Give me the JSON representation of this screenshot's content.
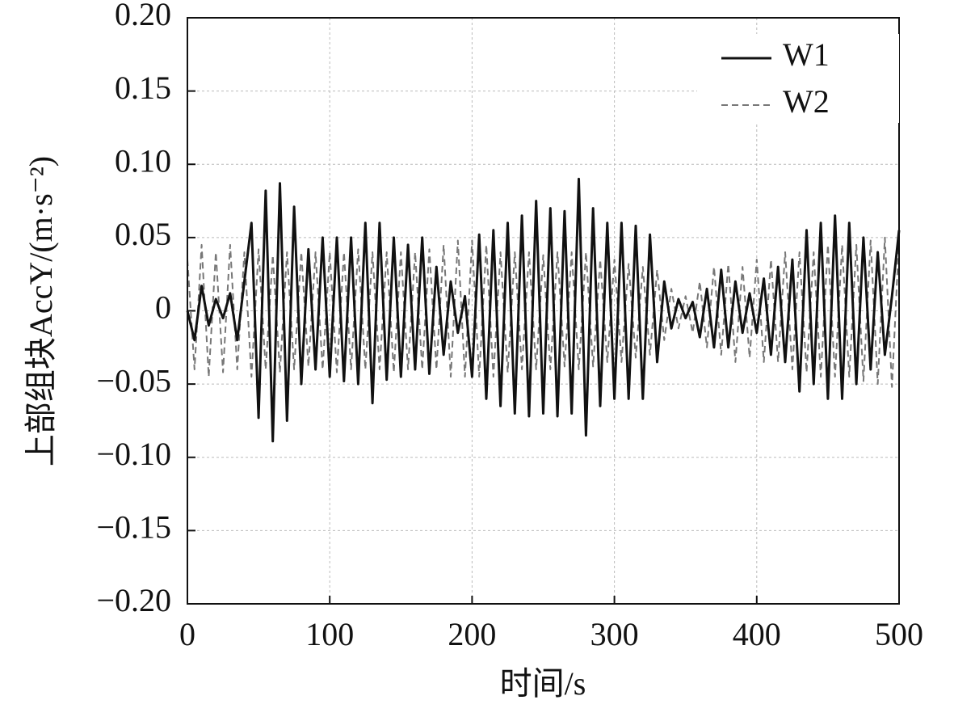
{
  "chart_data": {
    "type": "line",
    "xlabel": "时间/s",
    "ylabel": "上部组块AccY/(m·s⁻²)",
    "x": [
      0,
      5,
      10,
      15,
      20,
      25,
      30,
      35,
      40,
      45,
      50,
      55,
      60,
      65,
      70,
      75,
      80,
      85,
      90,
      95,
      100,
      105,
      110,
      115,
      120,
      125,
      130,
      135,
      140,
      145,
      150,
      155,
      160,
      165,
      170,
      175,
      180,
      185,
      190,
      195,
      200,
      205,
      210,
      215,
      220,
      225,
      230,
      235,
      240,
      245,
      250,
      255,
      260,
      265,
      270,
      275,
      280,
      285,
      290,
      295,
      300,
      305,
      310,
      315,
      320,
      325,
      330,
      335,
      340,
      345,
      350,
      355,
      360,
      365,
      370,
      375,
      380,
      385,
      390,
      395,
      400,
      405,
      410,
      415,
      420,
      425,
      430,
      435,
      440,
      445,
      450,
      455,
      460,
      465,
      470,
      475,
      480,
      485,
      490,
      495,
      500
    ],
    "series": [
      {
        "name": "W1",
        "color": "#111111",
        "dash": false,
        "values": [
          0,
          -0.02,
          0.017,
          -0.01,
          0.008,
          -0.005,
          0.012,
          -0.02,
          0.02,
          0.06,
          -0.073,
          0.082,
          -0.089,
          0.087,
          -0.075,
          0.071,
          -0.05,
          0.042,
          -0.04,
          0.05,
          -0.045,
          0.05,
          -0.048,
          0.05,
          -0.05,
          0.06,
          -0.063,
          0.06,
          -0.047,
          0.05,
          -0.045,
          0.045,
          -0.04,
          0.05,
          -0.043,
          0.03,
          -0.03,
          0.02,
          -0.015,
          0.01,
          -0.045,
          0.052,
          -0.06,
          0.055,
          -0.065,
          0.06,
          -0.07,
          0.065,
          -0.072,
          0.075,
          -0.07,
          0.07,
          -0.072,
          0.068,
          -0.07,
          0.09,
          -0.085,
          0.07,
          -0.065,
          0.06,
          -0.06,
          0.06,
          -0.06,
          0.058,
          -0.06,
          0.052,
          -0.035,
          0.02,
          -0.012,
          0.008,
          -0.005,
          0.006,
          -0.018,
          0.015,
          -0.025,
          0.028,
          -0.025,
          0.02,
          -0.015,
          0.012,
          -0.015,
          0.022,
          -0.03,
          0.03,
          -0.035,
          0.035,
          -0.055,
          0.055,
          -0.05,
          0.06,
          -0.06,
          0.065,
          -0.06,
          0.06,
          -0.05,
          0.05,
          -0.04,
          0.04,
          -0.03,
          0.01,
          0.055
        ]
      },
      {
        "name": "W2",
        "color": "#777777",
        "dash": true,
        "values": [
          0.035,
          -0.04,
          0.045,
          -0.045,
          0.04,
          -0.042,
          0.045,
          -0.04,
          0.04,
          -0.045,
          0.042,
          -0.04,
          0.038,
          -0.042,
          0.04,
          -0.04,
          0.04,
          -0.038,
          0.04,
          -0.04,
          0.04,
          -0.042,
          0.04,
          -0.04,
          0.042,
          -0.04,
          0.04,
          -0.04,
          0.04,
          -0.042,
          0.04,
          -0.04,
          0.04,
          -0.04,
          0.042,
          -0.04,
          0.045,
          -0.045,
          0.048,
          -0.045,
          0.048,
          -0.045,
          0.045,
          -0.045,
          0.04,
          -0.042,
          0.04,
          -0.04,
          0.04,
          -0.04,
          0.038,
          -0.04,
          0.04,
          -0.038,
          0.04,
          -0.04,
          0.04,
          -0.038,
          0.035,
          -0.035,
          0.035,
          -0.035,
          0.032,
          -0.032,
          0.03,
          -0.03,
          0.028,
          -0.02,
          0.015,
          -0.012,
          0.01,
          -0.015,
          0.02,
          -0.025,
          0.03,
          -0.03,
          0.032,
          -0.035,
          0.03,
          -0.032,
          0.035,
          -0.035,
          0.035,
          -0.035,
          0.04,
          -0.04,
          0.04,
          -0.042,
          0.04,
          -0.045,
          0.045,
          -0.045,
          0.045,
          -0.045,
          0.045,
          -0.048,
          0.048,
          -0.05,
          0.05,
          -0.052,
          0.05
        ]
      }
    ],
    "xlim": [
      0,
      500
    ],
    "xticks": [
      0,
      100,
      200,
      300,
      400,
      500
    ],
    "ylim": [
      -0.2,
      0.2
    ],
    "yticks": [
      {
        "value": -0.2,
        "label": "−0.20"
      },
      {
        "value": -0.15,
        "label": "−0.15"
      },
      {
        "value": -0.1,
        "label": "−0.10"
      },
      {
        "value": -0.05,
        "label": "−0.05"
      },
      0,
      0.05,
      {
        "value": 0.1,
        "label": "0.10"
      },
      0.15,
      {
        "value": 0.2,
        "label": "0.20"
      }
    ],
    "grid": true,
    "legend": "upper right"
  }
}
